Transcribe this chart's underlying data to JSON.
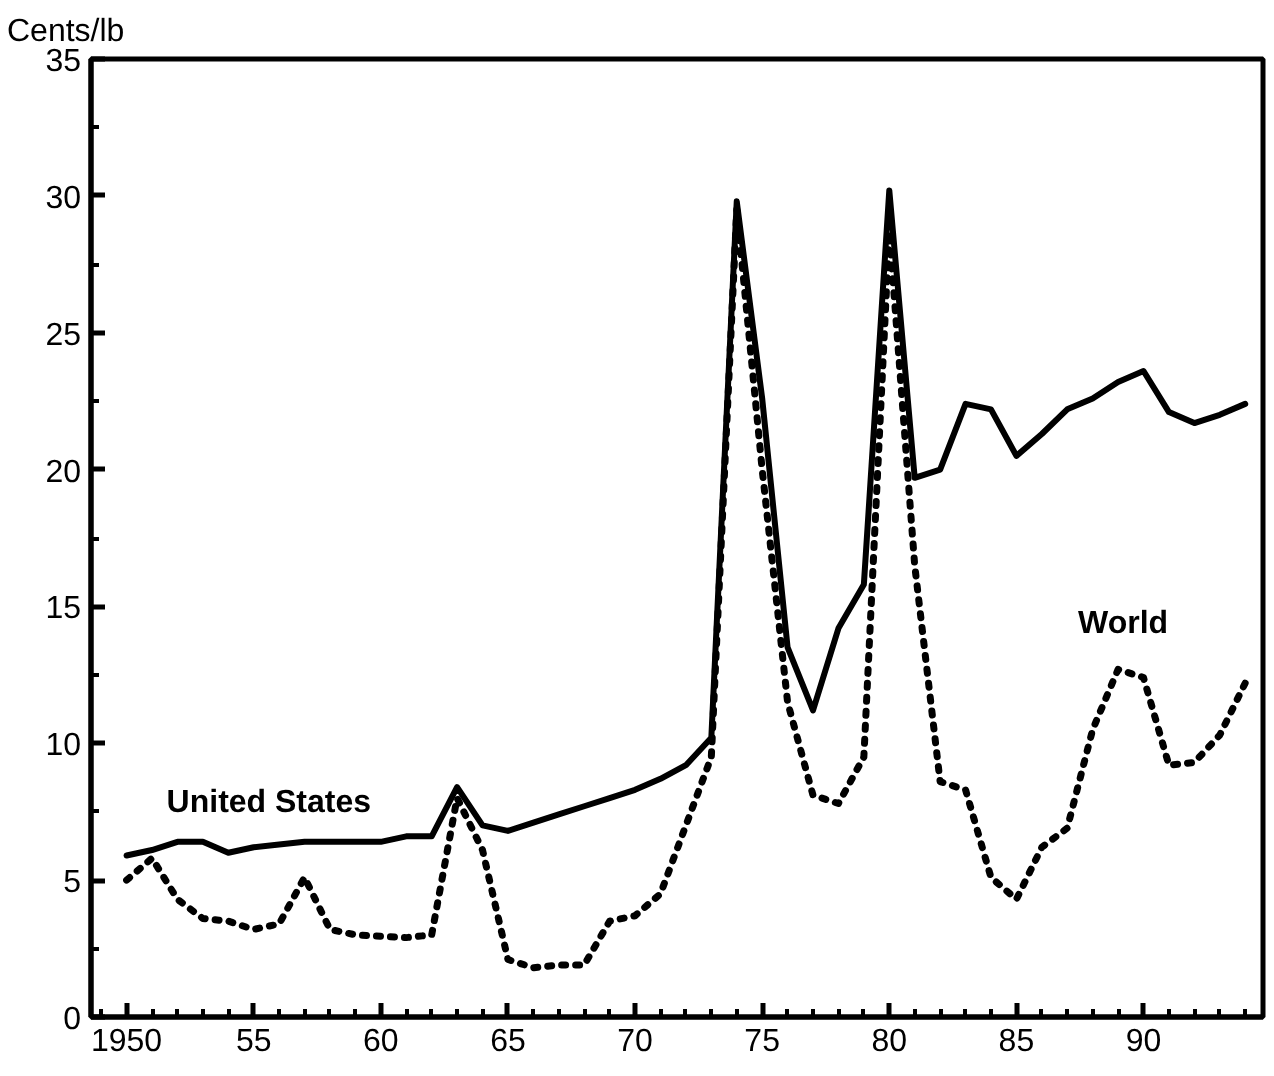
{
  "chart_data": {
    "type": "line",
    "ylabel": "Cents/lb",
    "x": [
      1950,
      1951,
      1952,
      1953,
      1954,
      1955,
      1956,
      1957,
      1958,
      1959,
      1960,
      1961,
      1962,
      1963,
      1964,
      1965,
      1966,
      1967,
      1968,
      1969,
      1970,
      1971,
      1972,
      1973,
      1974,
      1975,
      1976,
      1977,
      1978,
      1979,
      1980,
      1981,
      1982,
      1983,
      1984,
      1985,
      1986,
      1987,
      1988,
      1989,
      1990,
      1991,
      1992,
      1993,
      1994
    ],
    "series": [
      {
        "name": "United States",
        "color": "#000000",
        "line_style": "solid",
        "values": [
          5.9,
          6.1,
          6.4,
          6.4,
          6.0,
          6.2,
          6.3,
          6.4,
          6.4,
          6.4,
          6.4,
          6.6,
          6.6,
          8.4,
          7.0,
          6.8,
          7.1,
          7.4,
          7.7,
          8.0,
          8.3,
          8.7,
          9.2,
          10.2,
          29.8,
          22.6,
          13.5,
          11.2,
          14.2,
          15.8,
          30.2,
          19.7,
          20.0,
          22.4,
          22.2,
          20.5,
          21.3,
          22.2,
          22.6,
          23.2,
          23.6,
          22.1,
          21.7,
          22.0,
          22.4
        ]
      },
      {
        "name": "World",
        "color": "#000000",
        "line_style": "dotted",
        "values": [
          5.0,
          5.8,
          4.3,
          3.6,
          3.5,
          3.2,
          3.4,
          5.1,
          3.2,
          3.0,
          2.95,
          2.9,
          3.0,
          8.0,
          6.1,
          2.1,
          1.8,
          1.9,
          1.9,
          3.5,
          3.7,
          4.5,
          7.0,
          9.5,
          29.5,
          20.0,
          11.5,
          8.1,
          7.8,
          9.5,
          28.7,
          16.5,
          8.6,
          8.3,
          5.1,
          4.3,
          6.2,
          6.9,
          10.5,
          12.7,
          12.4,
          9.2,
          9.3,
          10.3,
          12.2
        ]
      }
    ],
    "xlim": [
      1948.6,
      1994.7
    ],
    "ylim": [
      0,
      35
    ],
    "xticks": [
      {
        "value": 1950,
        "label": "1950"
      },
      {
        "value": 1955,
        "label": "55"
      },
      {
        "value": 1960,
        "label": "60"
      },
      {
        "value": 1965,
        "label": "65"
      },
      {
        "value": 1970,
        "label": "70"
      },
      {
        "value": 1975,
        "label": "75"
      },
      {
        "value": 1980,
        "label": "80"
      },
      {
        "value": 1985,
        "label": "85"
      },
      {
        "value": 1990,
        "label": "90"
      }
    ],
    "yticks": [
      0,
      5,
      10,
      15,
      20,
      25,
      30,
      35
    ],
    "grid": false
  }
}
